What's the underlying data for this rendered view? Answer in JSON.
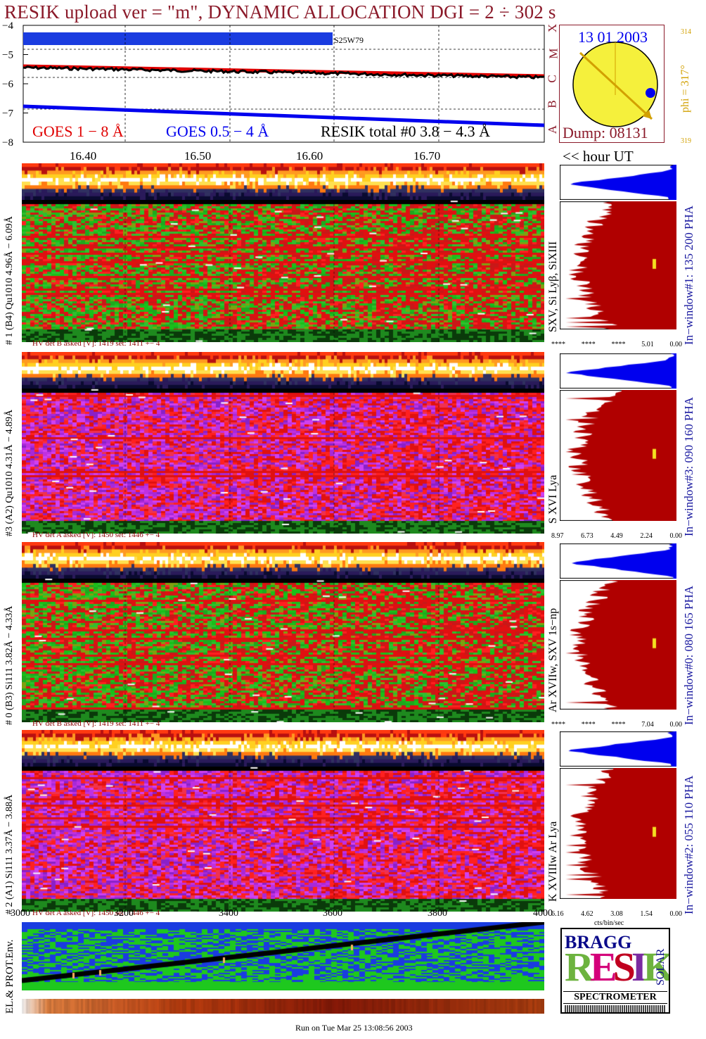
{
  "title": "RESIK upload ver = \"m\", DYNAMIC ALLOCATION  DGI =   2 ÷ 302 s",
  "colors": {
    "title": "#8b1a2a",
    "goes18": "#e00000",
    "goes054": "#0000ee",
    "resik": "#000000",
    "rightTitles": "#1a1aa0"
  },
  "lightcurve": {
    "yticks": [
      "−4",
      "−5",
      "−6",
      "−7",
      "−8"
    ],
    "ylim": [
      -8,
      -4
    ],
    "flare_label": "S25W79",
    "legend": {
      "goes18": "GOES 1 − 8 Å",
      "goes054": "GOES 0.5 − 4 Å",
      "resik": "RESIK total #0  3.8 − 4.3 Å"
    }
  },
  "sun": {
    "date": "13 01 2003",
    "phi_label": "phi = 317°",
    "phi_hi": "314",
    "phi_lo": "319",
    "dump": "Dump: 08131",
    "goes_class_letters": [
      "X",
      "M",
      "C",
      "B",
      "A"
    ]
  },
  "time_axis": {
    "ticks": [
      "16.40",
      "16.50",
      "16.60",
      "16.70"
    ],
    "unit_label": "<< hour UT"
  },
  "channels": [
    {
      "label": "# 1 (B4) Qu1010 4.96Å − 6.09Å",
      "hv": "HV det B asked [V]:  1419 set:  1411  +−    4",
      "lines": "SXV, Si Lyβ, SiXIII",
      "window": "In−window#1:  135 200 PHA",
      "scale": [
        "****",
        "****",
        "****",
        "5.01",
        "0.00"
      ],
      "theme": "green"
    },
    {
      "label": "#3 (A2) Qu1010  4.31Å − 4.89Å",
      "hv": "HV det A asked [V]:  1450 set:  1446  +−    4",
      "lines": "S XVI Lya",
      "window": "In−window#3:  090 160 PHA",
      "scale": [
        "8.97",
        "6.73",
        "4.49",
        "2.24",
        "0.00"
      ],
      "theme": "purple"
    },
    {
      "label": "# 0 (B3) Si111  3.82Å − 4.33Å",
      "hv": "HV det B asked [V]:  1419 set:  1411  +−    4",
      "lines": "Ar XVIIw, SXV 1s−np",
      "window": "In−window#0:  080 165 PHA",
      "scale": [
        "****",
        "****",
        "****",
        "7.04",
        "0.00"
      ],
      "theme": "green"
    },
    {
      "label": "# 2 (A1) Si111  3.37Å − 3.88Å",
      "hv": "HV det A asked [V]:  1450 set:  1446  +−    4",
      "lines": "K XVIIIw  Ar Lya",
      "window": "In−window#2:  055 110 PHA",
      "scale": [
        "6.16",
        "4.62",
        "3.08",
        "1.54",
        "0.00"
      ],
      "theme": "purple"
    }
  ],
  "xaxis_bottom": {
    "ticks": [
      "3000",
      "3200",
      "3400",
      "3600",
      "3800",
      "4000"
    ],
    "unit": "cts/bin/sec"
  },
  "env_label": "EL.& PROT.Env.",
  "footer": "Run on Tue Mar 25 13:08:56 2003",
  "logo": {
    "bragg": "BRAGG",
    "resik": "RESIK",
    "solar": "SOLAR",
    "spectrometer": "SPECTROMETER"
  }
}
